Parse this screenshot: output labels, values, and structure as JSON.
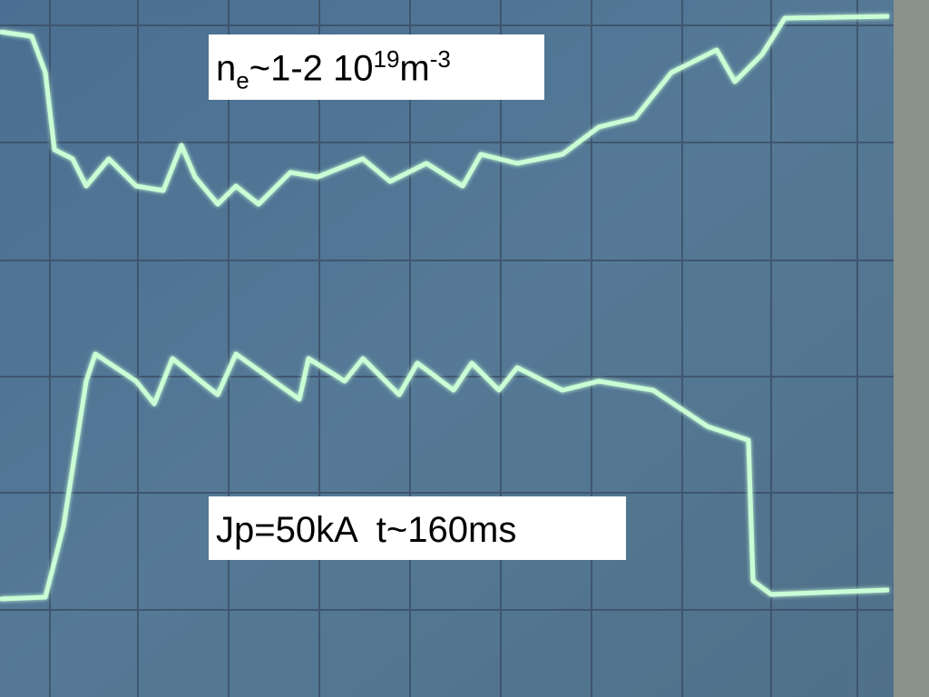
{
  "labels": [
    {
      "parts": [
        "n",
        "e",
        "~1-2 10",
        "19",
        "m",
        "-3"
      ]
    },
    {
      "text": "Jp=50kA  t~160ms"
    }
  ]
}
